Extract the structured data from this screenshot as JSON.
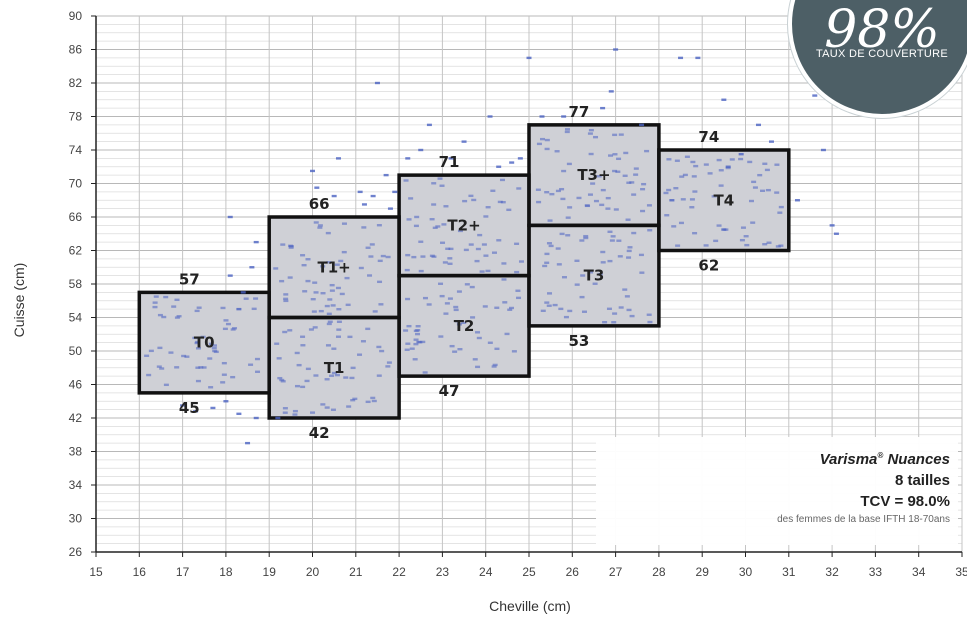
{
  "chart_data": {
    "type": "scatter",
    "xlabel": "Cheville (cm)",
    "ylabel": "Cuisse (cm)",
    "xlim": [
      15,
      35
    ],
    "ylim": [
      26,
      90
    ],
    "xticks": [
      15,
      16,
      17,
      18,
      19,
      20,
      21,
      22,
      23,
      24,
      25,
      26,
      27,
      28,
      29,
      30,
      31,
      32,
      33,
      34,
      35
    ],
    "yticks": [
      26,
      30,
      34,
      38,
      42,
      46,
      50,
      54,
      58,
      62,
      66,
      70,
      74,
      78,
      82,
      86,
      90
    ],
    "grid": true,
    "sizes": [
      {
        "name": "T0",
        "x": [
          16,
          19
        ],
        "y": [
          45,
          57
        ]
      },
      {
        "name": "T1",
        "x": [
          19,
          22
        ],
        "y": [
          42,
          54
        ]
      },
      {
        "name": "T1+",
        "x": [
          19,
          22
        ],
        "y": [
          54,
          66
        ]
      },
      {
        "name": "T2",
        "x": [
          22,
          25
        ],
        "y": [
          47,
          59
        ]
      },
      {
        "name": "T2+",
        "x": [
          22,
          25
        ],
        "y": [
          59,
          71
        ]
      },
      {
        "name": "T3",
        "x": [
          25,
          28
        ],
        "y": [
          53,
          65
        ]
      },
      {
        "name": "T3+",
        "x": [
          25,
          28
        ],
        "y": [
          65,
          77
        ]
      },
      {
        "name": "T4",
        "x": [
          28,
          31
        ],
        "y": [
          62,
          74
        ]
      }
    ],
    "bound_labels": [
      {
        "text": "57",
        "x": 17.5,
        "y": 57,
        "pos": "above"
      },
      {
        "text": "45",
        "x": 17.5,
        "y": 45,
        "pos": "below"
      },
      {
        "text": "66",
        "x": 20.5,
        "y": 66,
        "pos": "above"
      },
      {
        "text": "42",
        "x": 20.5,
        "y": 42,
        "pos": "below"
      },
      {
        "text": "71",
        "x": 23.5,
        "y": 71,
        "pos": "above"
      },
      {
        "text": "47",
        "x": 23.5,
        "y": 47,
        "pos": "below"
      },
      {
        "text": "77",
        "x": 26.5,
        "y": 77,
        "pos": "above"
      },
      {
        "text": "53",
        "x": 26.5,
        "y": 53,
        "pos": "below"
      },
      {
        "text": "74",
        "x": 29.5,
        "y": 74,
        "pos": "above"
      },
      {
        "text": "62",
        "x": 29.5,
        "y": 62,
        "pos": "below"
      }
    ],
    "outlier_points": [
      [
        17,
        43.5
      ],
      [
        17.3,
        42.8
      ],
      [
        17.7,
        43.2
      ],
      [
        18,
        44
      ],
      [
        18.3,
        42.5
      ],
      [
        18.5,
        39
      ],
      [
        18.7,
        42
      ],
      [
        19.2,
        42
      ],
      [
        18.1,
        59
      ],
      [
        18.6,
        60
      ],
      [
        18.4,
        57
      ],
      [
        18.1,
        66
      ],
      [
        18.7,
        63
      ],
      [
        18.3,
        55
      ],
      [
        20,
        71.5
      ],
      [
        20.1,
        69.5
      ],
      [
        20.5,
        68.5
      ],
      [
        20.6,
        73
      ],
      [
        21.1,
        69
      ],
      [
        21.2,
        67.5
      ],
      [
        21.4,
        68.5
      ],
      [
        21.5,
        82
      ],
      [
        21.7,
        71
      ],
      [
        21.8,
        67
      ],
      [
        21.9,
        69
      ],
      [
        22.2,
        73
      ],
      [
        22.5,
        74
      ],
      [
        22.7,
        77
      ],
      [
        23.2,
        73
      ],
      [
        23.5,
        75
      ],
      [
        24.1,
        78
      ],
      [
        24.3,
        72
      ],
      [
        24.6,
        72.5
      ],
      [
        24.8,
        73
      ],
      [
        25,
        85
      ],
      [
        25.3,
        78
      ],
      [
        25.8,
        78
      ],
      [
        26.7,
        79
      ],
      [
        26.9,
        81
      ],
      [
        27,
        86
      ],
      [
        27.6,
        77
      ],
      [
        28.5,
        85
      ],
      [
        28.9,
        85
      ],
      [
        29.5,
        80
      ],
      [
        30.3,
        77
      ],
      [
        30.6,
        75
      ],
      [
        31.2,
        68
      ],
      [
        31.6,
        80.5
      ],
      [
        31.8,
        74
      ],
      [
        32,
        65
      ],
      [
        32.1,
        64
      ],
      [
        32.4,
        79
      ],
      [
        29.6,
        72
      ],
      [
        29.9,
        73.5
      ],
      [
        28.3,
        68
      ],
      [
        29.5,
        64.5
      ]
    ],
    "colors": {
      "box_fill": "#cfd0d6",
      "box_stroke": "#111111",
      "point": "#4a61c2",
      "dense_center": "#f2f08a",
      "grid": "#c8c8c8"
    }
  },
  "info_box": {
    "brand": "Varisma",
    "brand_mark": "®",
    "brand_suffix": "Nuances",
    "sizes_count": "8 tailles",
    "tcv": "TCV = 98.0%",
    "note": "des femmes de la base IFTH 18-70ans"
  },
  "badge": {
    "value": "98%",
    "caption": "TAUX DE COUVERTURE"
  }
}
